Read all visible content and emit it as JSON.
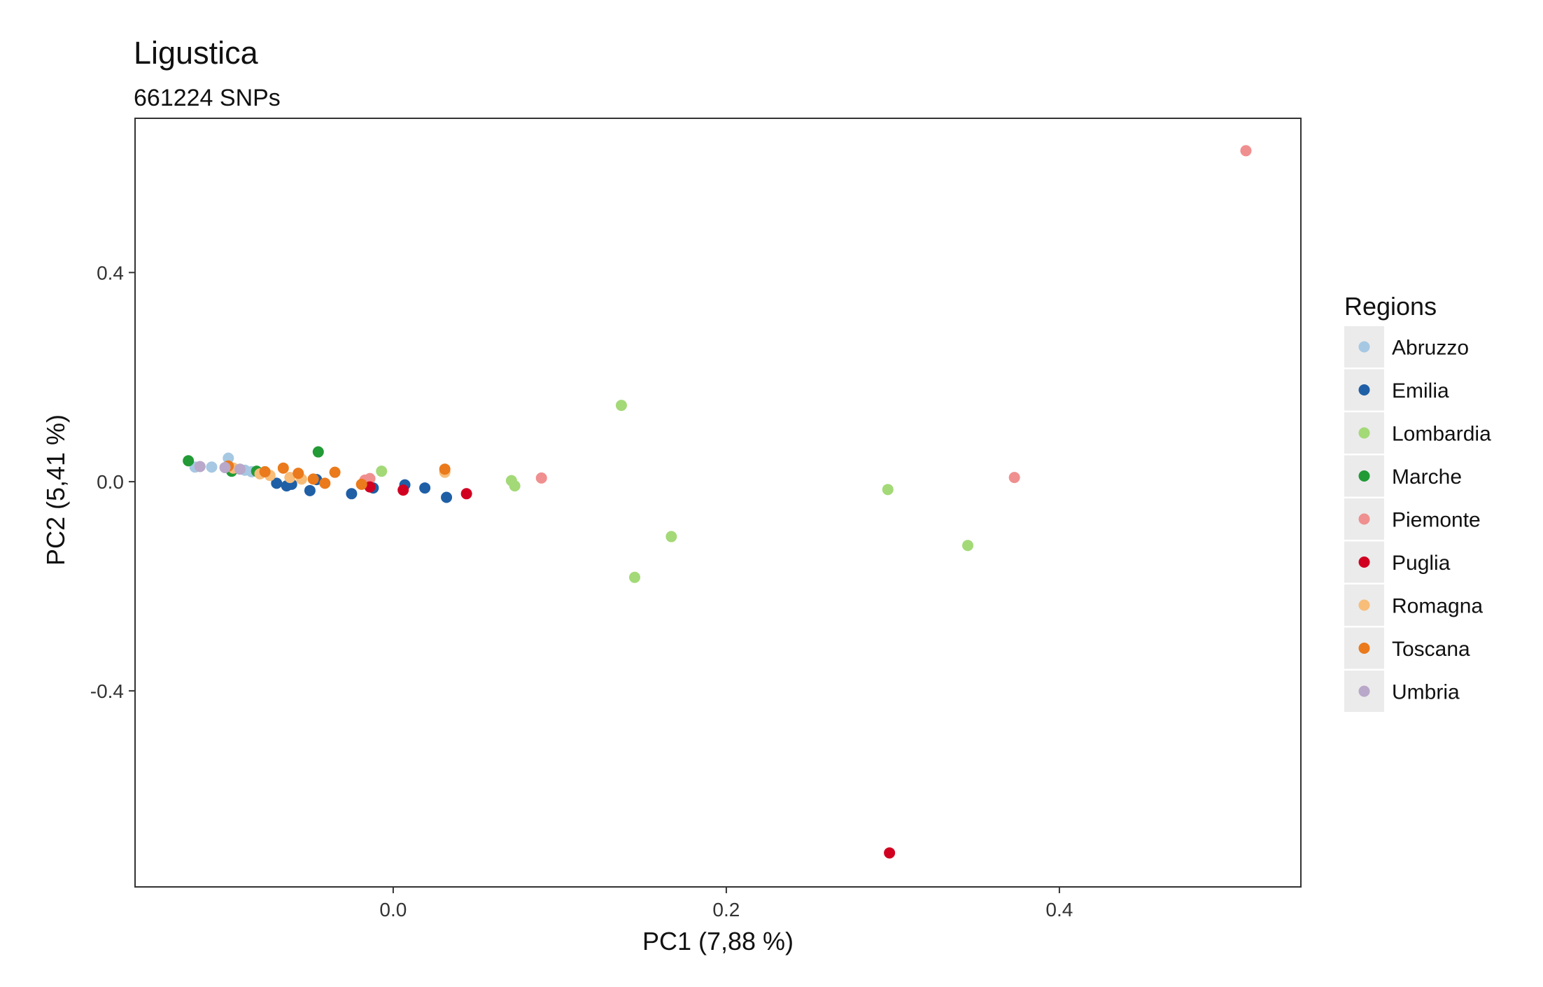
{
  "chart_data": {
    "type": "scatter",
    "title": "Ligustica",
    "subtitle": "661224 SNPs",
    "xlabel": "PC1 (7,88 %)",
    "ylabel": "PC2 (5,41 %)",
    "xlim": [
      -0.155,
      0.545
    ],
    "ylim": [
      -0.775,
      0.695
    ],
    "x_ticks": [
      {
        "value": 0.0,
        "label": "0.0"
      },
      {
        "value": 0.2,
        "label": "0.2"
      },
      {
        "value": 0.4,
        "label": "0.4"
      }
    ],
    "y_ticks": [
      {
        "value": 0.4,
        "label": "0.4"
      },
      {
        "value": 0.0,
        "label": "0.0"
      },
      {
        "value": -0.4,
        "label": "-0.4"
      }
    ],
    "grid": false,
    "legend_position": "right",
    "legend_title": "Regions",
    "series": [
      {
        "name": "Abruzzo",
        "color": "#a6c8e3",
        "points": [
          [
            -0.119,
            0.028
          ],
          [
            -0.109,
            0.028
          ],
          [
            -0.099,
            0.045
          ],
          [
            -0.089,
            0.022
          ],
          [
            -0.085,
            0.019
          ]
        ]
      },
      {
        "name": "Emilia",
        "color": "#1f5fa6",
        "points": [
          [
            -0.07,
            -0.003
          ],
          [
            -0.064,
            -0.008
          ],
          [
            -0.061,
            -0.005
          ],
          [
            -0.05,
            -0.017
          ],
          [
            -0.046,
            0.004
          ],
          [
            -0.025,
            -0.023
          ],
          [
            -0.012,
            -0.012
          ],
          [
            0.007,
            -0.006
          ],
          [
            0.019,
            -0.012
          ],
          [
            0.032,
            -0.03
          ]
        ]
      },
      {
        "name": "Lombardia",
        "color": "#a3d977",
        "points": [
          [
            -0.007,
            0.02
          ],
          [
            0.071,
            0.002
          ],
          [
            0.073,
            -0.008
          ],
          [
            0.137,
            0.146
          ],
          [
            0.145,
            -0.183
          ],
          [
            0.167,
            -0.105
          ],
          [
            0.297,
            -0.015
          ],
          [
            0.345,
            -0.122
          ]
        ]
      },
      {
        "name": "Marche",
        "color": "#229a36",
        "points": [
          [
            -0.123,
            0.04
          ],
          [
            -0.097,
            0.02
          ],
          [
            -0.082,
            0.02
          ],
          [
            -0.045,
            0.057
          ]
        ]
      },
      {
        "name": "Piemonte",
        "color": "#f08f8f",
        "points": [
          [
            -0.017,
            0.003
          ],
          [
            -0.014,
            0.006
          ],
          [
            0.089,
            0.007
          ],
          [
            0.373,
            0.008
          ],
          [
            0.512,
            0.633
          ]
        ]
      },
      {
        "name": "Puglia",
        "color": "#d10021",
        "points": [
          [
            -0.014,
            -0.01
          ],
          [
            0.006,
            -0.016
          ],
          [
            0.044,
            -0.023
          ],
          [
            0.298,
            -0.71
          ]
        ]
      },
      {
        "name": "Romagna",
        "color": "#f7bd79",
        "points": [
          [
            -0.096,
            0.026
          ],
          [
            -0.08,
            0.015
          ],
          [
            -0.074,
            0.012
          ],
          [
            -0.062,
            0.008
          ],
          [
            -0.055,
            0.005
          ],
          [
            0.031,
            0.018
          ]
        ]
      },
      {
        "name": "Toscana",
        "color": "#ea7a1c",
        "points": [
          [
            -0.099,
            0.03
          ],
          [
            -0.077,
            0.019
          ],
          [
            -0.066,
            0.026
          ],
          [
            -0.057,
            0.016
          ],
          [
            -0.048,
            0.005
          ],
          [
            -0.041,
            -0.003
          ],
          [
            -0.035,
            0.018
          ],
          [
            -0.019,
            -0.005
          ],
          [
            0.031,
            0.024
          ]
        ]
      },
      {
        "name": "Umbria",
        "color": "#b9a8c9",
        "points": [
          [
            -0.116,
            0.029
          ],
          [
            -0.101,
            0.027
          ],
          [
            -0.092,
            0.024
          ]
        ]
      }
    ]
  }
}
